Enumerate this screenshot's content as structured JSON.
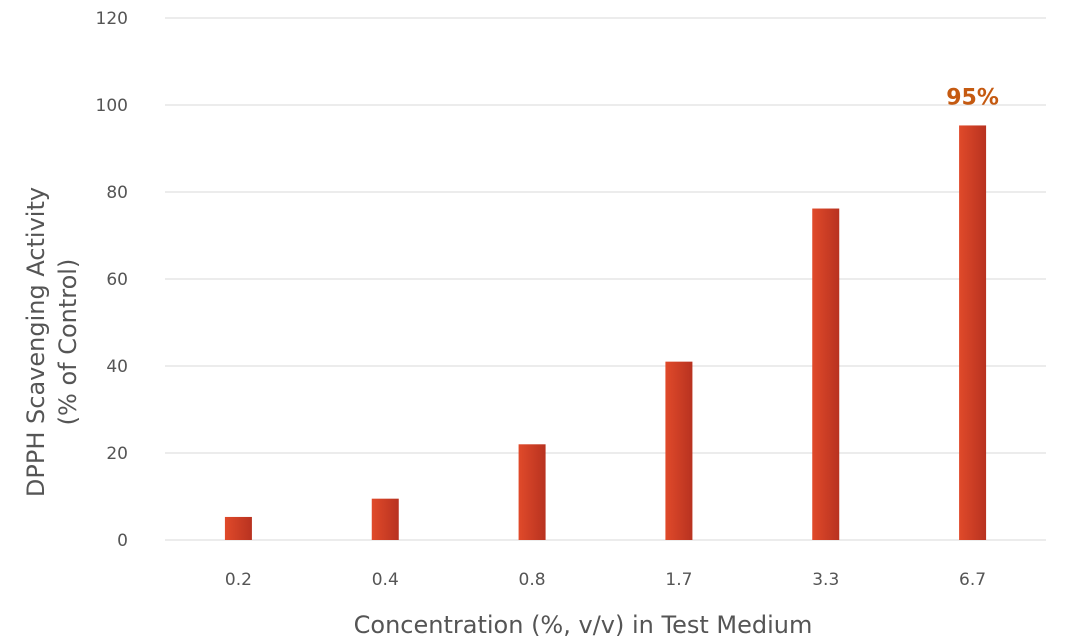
{
  "chart_data": {
    "type": "bar",
    "title": "",
    "xlabel": "Concentration (%, v/v) in Test Medium",
    "ylabel_lines": [
      "DPPH Scavenging Activity",
      "(% of Control)"
    ],
    "categories": [
      "0.2",
      "0.4",
      "0.8",
      "1.7",
      "3.3",
      "6.7"
    ],
    "values": [
      5.3,
      9.5,
      22.0,
      41.0,
      76.2,
      95.3
    ],
    "ylim": [
      0,
      120
    ],
    "yticks": [
      0,
      20,
      40,
      60,
      80,
      100,
      120
    ],
    "grid": true,
    "data_labels": [
      {
        "index": 5,
        "text": "95%"
      }
    ],
    "colors": {
      "bar_light": "#e04a2a",
      "bar_dark": "#b83220",
      "label": "#c55a11",
      "grid": "#d9d9d9"
    }
  }
}
